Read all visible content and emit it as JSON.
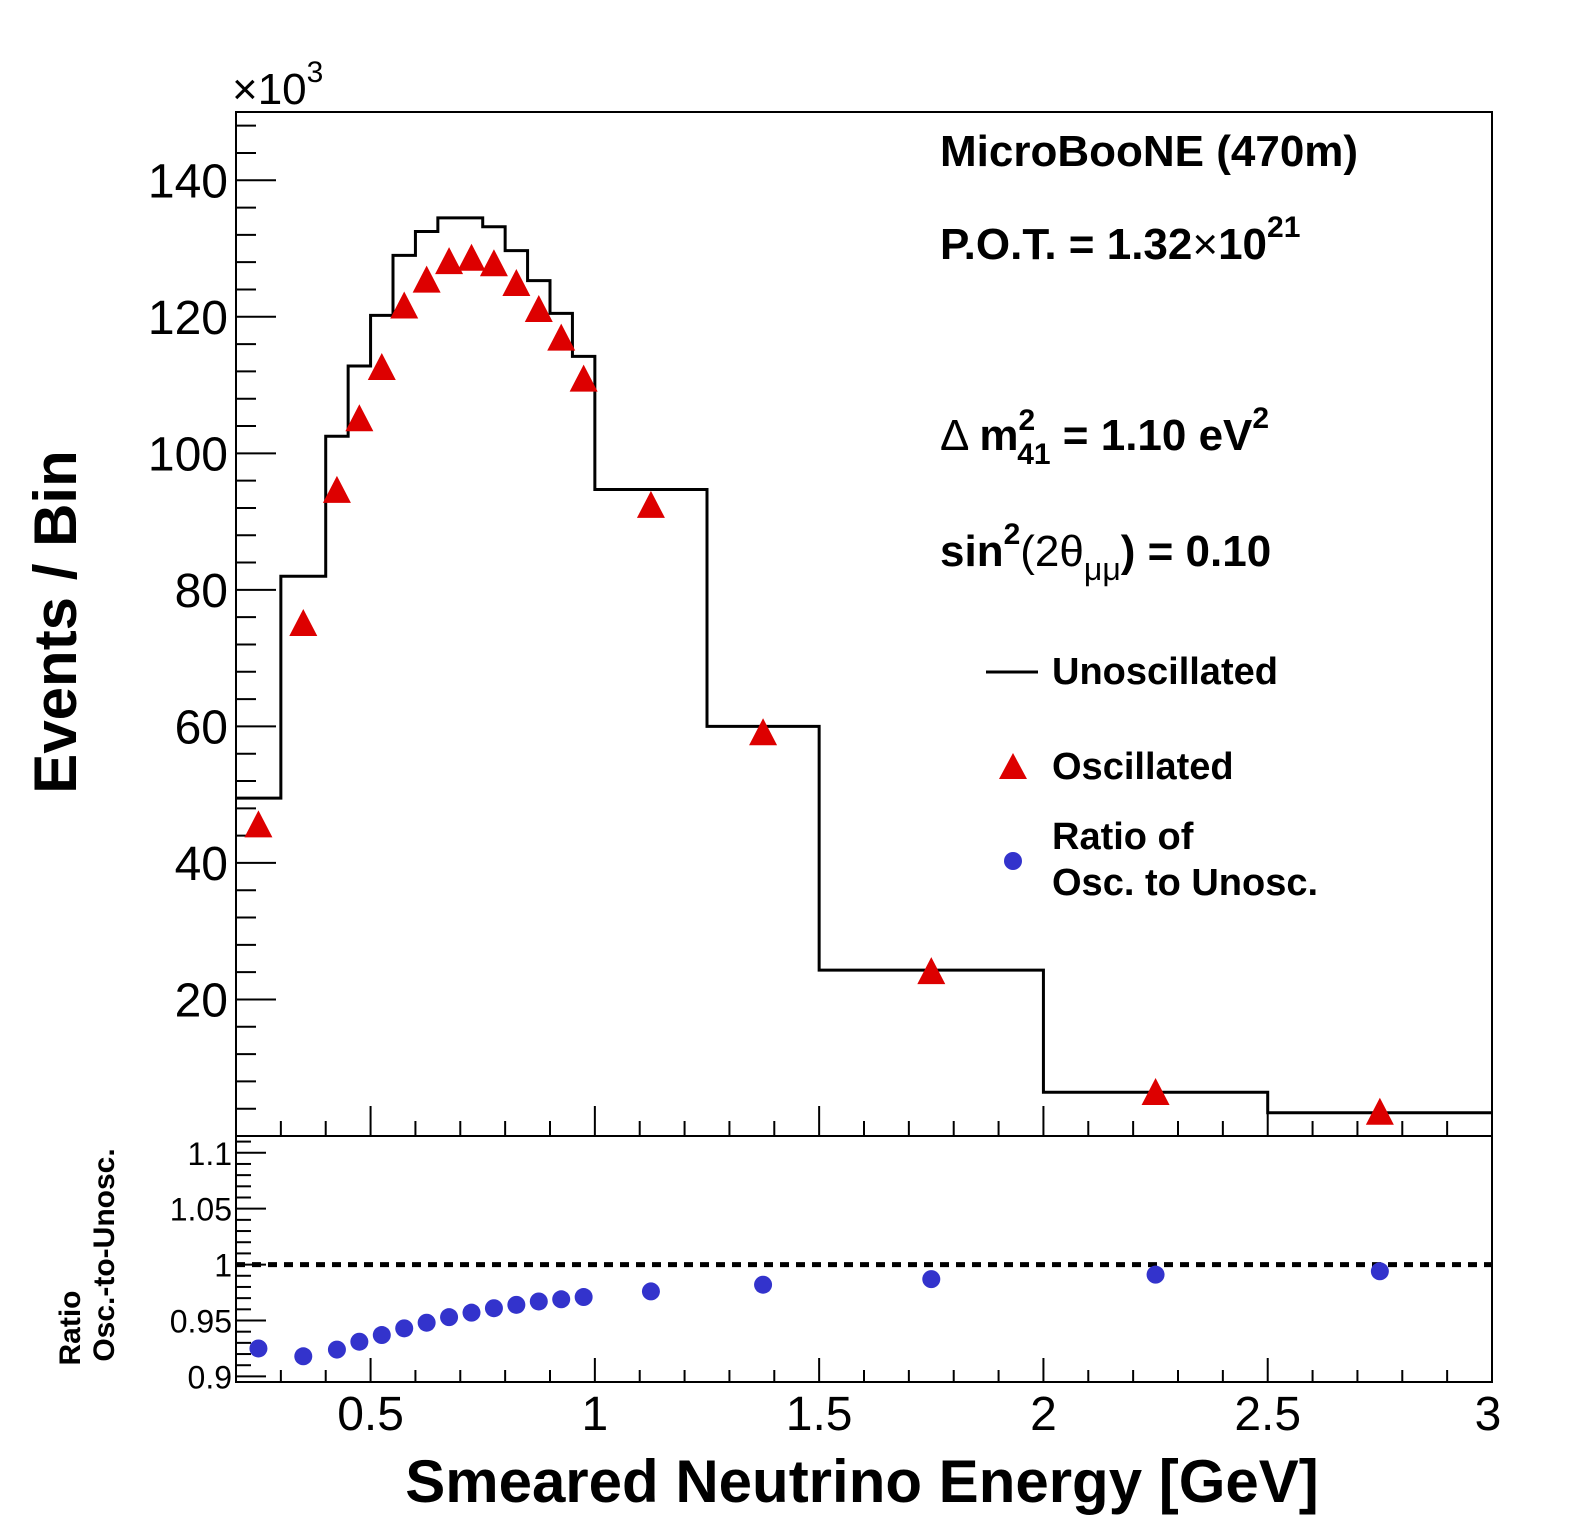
{
  "chart_data": [
    {
      "type": "histogram",
      "title": "",
      "xlabel": "Smeared Neutrino Energy [GeV]",
      "ylabel": "Events / Bin",
      "y_multiplier": "×10",
      "y_multiplier_exp": "3",
      "xlim": [
        0.2,
        3.0
      ],
      "ylim": [
        0,
        150
      ],
      "y_ticks": [
        20,
        40,
        60,
        80,
        100,
        120,
        140
      ],
      "y_tick_labels": [
        "20",
        "40",
        "60",
        "80",
        "100",
        "120",
        "140"
      ],
      "bin_edges": [
        0.2,
        0.3,
        0.4,
        0.45,
        0.5,
        0.55,
        0.6,
        0.65,
        0.7,
        0.75,
        0.8,
        0.85,
        0.9,
        0.95,
        1.0,
        1.25,
        1.5,
        2.0,
        2.5,
        3.0
      ],
      "series": [
        {
          "name": "Unoscillated",
          "style": "step",
          "color": "#000000",
          "values": [
            49.5,
            82.0,
            102.5,
            112.8,
            120.2,
            129.0,
            132.5,
            134.5,
            134.5,
            133.2,
            129.7,
            125.3,
            120.5,
            114.2,
            94.7,
            60.0,
            24.3,
            6.4,
            3.4
          ]
        },
        {
          "name": "Oscillated",
          "style": "marker-triangle",
          "color": "#dd0000",
          "values": [
            45.5,
            75.0,
            94.5,
            105.0,
            112.5,
            121.5,
            125.3,
            128.0,
            128.5,
            127.7,
            124.8,
            121.0,
            116.8,
            110.8,
            92.3,
            59.0,
            24.0,
            6.3,
            3.4
          ]
        }
      ],
      "annotations": [
        {
          "name": "experiment",
          "text": "MicroBooNE (470m)"
        },
        {
          "name": "pot",
          "text": "P.O.T. = 1.32",
          "times": "×",
          "base": "10",
          "exp": "21"
        },
        {
          "name": "dm2",
          "delta": "Δ",
          "m": "m",
          "sup": "2",
          "sub": "41",
          "rest": " = 1.10 eV",
          "unit_sup": "2"
        },
        {
          "name": "sin2",
          "fn": "sin",
          "sup": "2",
          "open": "(2",
          "theta": "θ",
          "sub": "μμ",
          "rest": ") = 0.10"
        }
      ],
      "legend": [
        {
          "label": "Unoscillated",
          "symbol": "line"
        },
        {
          "label": "Oscillated",
          "symbol": "triangle"
        },
        {
          "label_line1": "Ratio of",
          "label_line2": "Osc. to Unosc.",
          "symbol": "circle"
        }
      ]
    },
    {
      "type": "scatter",
      "name": "Ratio panel",
      "ylabel_line1": "Ratio",
      "ylabel_line2": "Osc.-to-Unosc.",
      "xlim": [
        0.2,
        3.0
      ],
      "ylim": [
        0.895,
        1.115
      ],
      "x_ticks": [
        0.5,
        1,
        1.5,
        2,
        2.5,
        3
      ],
      "x_tick_labels": [
        "0.5",
        "1",
        "1.5",
        "2",
        "2.5",
        "3"
      ],
      "y_ticks": [
        0.9,
        0.95,
        1,
        1.05,
        1.1
      ],
      "y_tick_labels": [
        "0.9",
        "0.95",
        "1",
        "1.05",
        "1.1"
      ],
      "reference_line": 1.0,
      "series": [
        {
          "name": "Ratio of Osc. to Unosc.",
          "color": "#3333cc",
          "x": [
            0.25,
            0.35,
            0.425,
            0.475,
            0.525,
            0.575,
            0.625,
            0.675,
            0.725,
            0.775,
            0.825,
            0.875,
            0.925,
            0.975,
            1.125,
            1.375,
            1.75,
            2.25,
            2.75
          ],
          "values": [
            0.925,
            0.918,
            0.924,
            0.931,
            0.937,
            0.943,
            0.948,
            0.953,
            0.957,
            0.961,
            0.964,
            0.967,
            0.969,
            0.971,
            0.976,
            0.982,
            0.987,
            0.991,
            0.994
          ]
        }
      ]
    }
  ],
  "colors": {
    "unosc": "#000000",
    "osc": "#dd0000",
    "ratio": "#3333cc"
  }
}
